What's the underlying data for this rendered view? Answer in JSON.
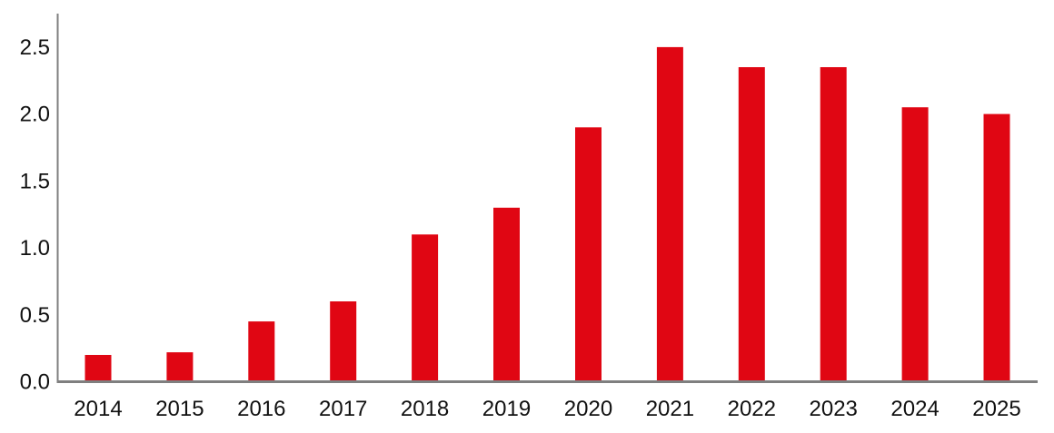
{
  "chart_data": {
    "type": "bar",
    "title": "",
    "xlabel": "",
    "ylabel": "",
    "categories": [
      "2014",
      "2015",
      "2016",
      "2017",
      "2018",
      "2019",
      "2020",
      "2021",
      "2022",
      "2023",
      "2024",
      "2025"
    ],
    "values": [
      0.2,
      0.22,
      0.45,
      0.6,
      1.1,
      1.3,
      1.9,
      2.5,
      2.35,
      2.35,
      2.05,
      2.0
    ],
    "ylim": [
      0,
      2.75
    ],
    "yticks": [
      0,
      0.5,
      1.0,
      1.5,
      2.0,
      2.5
    ],
    "ytick_labels": [
      "0.0",
      "0.5",
      "1.0",
      "1.5",
      "2.0",
      "2.5"
    ],
    "grid": false,
    "legend_position": "none",
    "bar_color": "#e00613",
    "axis_color": "#7f7f7f",
    "text_color": "#111111"
  }
}
